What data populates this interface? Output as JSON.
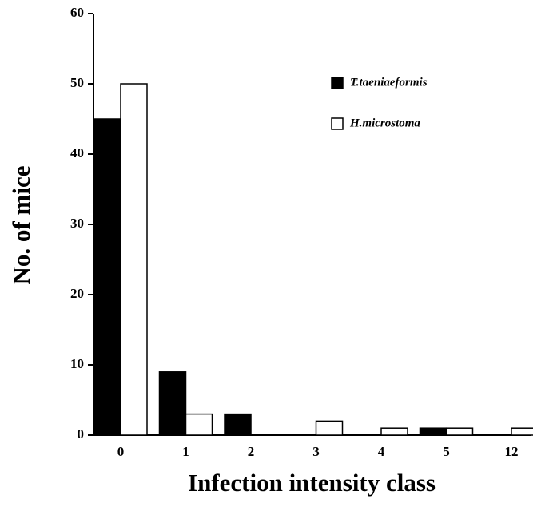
{
  "chart_data": {
    "type": "bar",
    "xlabel": "Infection intensity class",
    "ylabel": "No. of mice",
    "categories": [
      "0",
      "1",
      "2",
      "3",
      "4",
      "5",
      "12"
    ],
    "series": [
      {
        "name": "T.taeniaeformis",
        "color": "#000000",
        "values": [
          45,
          9,
          3,
          0,
          0,
          1,
          0
        ]
      },
      {
        "name": "H.microstoma",
        "color": "#ffffff",
        "values": [
          50,
          3,
          0,
          2,
          1,
          1,
          1
        ]
      }
    ],
    "ylim": [
      0,
      60
    ],
    "yticks": [
      0,
      10,
      20,
      30,
      40,
      50,
      60
    ],
    "grid": false,
    "legend": "upper right"
  }
}
